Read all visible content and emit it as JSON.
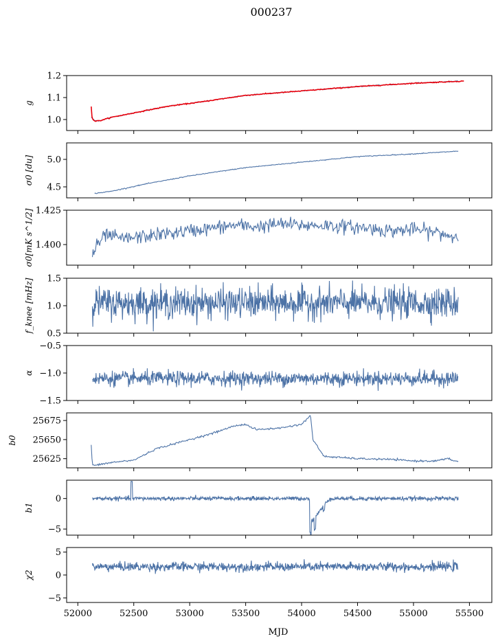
{
  "figure": {
    "title": "000237",
    "xlabel": "MJD"
  },
  "colors": {
    "series": "#4c72a6",
    "highlight": "#e8000b"
  },
  "chart_data": [
    {
      "type": "line",
      "ylabel": "g",
      "ylim": [
        0.95,
        1.2
      ],
      "yticks": [
        1.0,
        1.1,
        1.2
      ],
      "ytick_labels": [
        "1.0",
        "1.1",
        "1.2"
      ],
      "xlim": [
        51900,
        55700
      ],
      "series": [
        {
          "x": [
            52120,
            52150,
            52200,
            52300,
            52500,
            52800,
            53100,
            53500,
            54000,
            54500,
            55000,
            55400
          ],
          "y": [
            1.01,
            0.995,
            0.995,
            1.01,
            1.03,
            1.06,
            1.08,
            1.11,
            1.13,
            1.15,
            1.165,
            1.175
          ]
        },
        {
          "color_key": "highlight",
          "x": [
            52120,
            52125,
            52130,
            52140,
            52150,
            52200,
            52300,
            52500,
            52800,
            53100,
            53500,
            54000,
            54500,
            55000,
            55450
          ],
          "y": [
            1.06,
            1.02,
            1.005,
            0.998,
            0.993,
            0.995,
            1.01,
            1.03,
            1.06,
            1.08,
            1.11,
            1.13,
            1.15,
            1.165,
            1.175
          ]
        }
      ]
    },
    {
      "type": "line",
      "ylabel": "σ0 [du]",
      "ylim": [
        4.3,
        5.3
      ],
      "yticks": [
        4.5,
        5.0
      ],
      "ytick_labels": [
        "4.5",
        "5.0"
      ],
      "xlim": [
        51900,
        55700
      ],
      "series": [
        {
          "x": [
            52150,
            52300,
            52600,
            53000,
            53500,
            54000,
            54500,
            55000,
            55400
          ],
          "y": [
            4.38,
            4.42,
            4.55,
            4.7,
            4.85,
            4.95,
            5.05,
            5.1,
            5.15
          ]
        }
      ]
    },
    {
      "type": "line",
      "ylabel": "σ0[mK s^1/2]",
      "ylim": [
        1.385,
        1.425
      ],
      "yticks": [
        1.4,
        1.425
      ],
      "ytick_labels": [
        "1.400",
        "1.425"
      ],
      "xlim": [
        51900,
        55700
      ],
      "series": [
        {
          "x": [
            52130,
            52180,
            52250,
            52400,
            52600,
            52800,
            53000,
            53200,
            53400,
            53600,
            53800,
            54000,
            54200,
            54400,
            54600,
            54800,
            55000,
            55200,
            55400
          ],
          "y": [
            1.393,
            1.4,
            1.407,
            1.404,
            1.406,
            1.408,
            1.41,
            1.412,
            1.414,
            1.413,
            1.415,
            1.414,
            1.414,
            1.413,
            1.412,
            1.41,
            1.411,
            1.409,
            1.405
          ]
        }
      ]
    },
    {
      "type": "line",
      "ylabel": "f_knee [mHz]",
      "ylim": [
        0.5,
        1.5
      ],
      "yticks": [
        0.5,
        1.0,
        1.5
      ],
      "ytick_labels": [
        "0.5",
        "1.0",
        "1.5"
      ],
      "xlim": [
        51900,
        55700
      ],
      "series": [
        {
          "x_range": [
            52130,
            55400
          ],
          "mean": 1.05,
          "spread": 0.25
        }
      ]
    },
    {
      "type": "line",
      "ylabel": "α",
      "ylim": [
        -1.5,
        -0.5
      ],
      "yticks": [
        -1.5,
        -1.0,
        -0.5
      ],
      "ytick_labels": [
        "−1.5",
        "−1.0",
        "−0.5"
      ],
      "xlim": [
        51900,
        55700
      ],
      "series": [
        {
          "x_range": [
            52130,
            55400
          ],
          "mean": -1.1,
          "spread": 0.12
        }
      ]
    },
    {
      "type": "line",
      "ylabel": "b0",
      "ylim": [
        25613,
        25685
      ],
      "yticks": [
        25625,
        25650,
        25675
      ],
      "ytick_labels": [
        "25625",
        "25650",
        "25675"
      ],
      "xlim": [
        51900,
        55700
      ],
      "series": [
        {
          "x": [
            52120,
            52130,
            52150,
            52300,
            52500,
            52700,
            53000,
            53200,
            53400,
            53500,
            53550,
            53600,
            53800,
            54000,
            54080,
            54100,
            54200,
            54500,
            54800,
            55000,
            55200,
            55300,
            55400
          ],
          "y": [
            25643,
            25617,
            25616,
            25620,
            25623,
            25638,
            25650,
            25658,
            25668,
            25670,
            25666,
            25663,
            25665,
            25670,
            25682,
            25650,
            25628,
            25625,
            25624,
            25622,
            25622,
            25625,
            25621
          ]
        }
      ]
    },
    {
      "type": "line",
      "ylabel": "b1",
      "ylim": [
        -6,
        3
      ],
      "yticks": [
        -5,
        0
      ],
      "ytick_labels": [
        "−5",
        "0"
      ],
      "xlim": [
        51900,
        55700
      ],
      "series": [
        {
          "x_range": [
            52130,
            55400
          ],
          "mean": 0.0,
          "spread": 0.3,
          "features": [
            {
              "x": 52480,
              "y": 2.8
            },
            {
              "x": 54080,
              "y": -5.5
            },
            {
              "x": 54120,
              "y": -2.0
            },
            {
              "x": 54200,
              "y": -0.8
            }
          ]
        }
      ]
    },
    {
      "type": "line",
      "ylabel": "χ2",
      "ylim": [
        -6,
        6
      ],
      "yticks": [
        -5,
        0,
        5
      ],
      "ytick_labels": [
        "−5",
        "0",
        "5"
      ],
      "xticks": [
        52000,
        52500,
        53000,
        53500,
        54000,
        54500,
        55000,
        55500
      ],
      "xtick_labels": [
        "52000",
        "52500",
        "53000",
        "53500",
        "54000",
        "54500",
        "55000",
        "55500"
      ],
      "xlim": [
        51900,
        55700
      ],
      "series": [
        {
          "x_range": [
            52130,
            55400
          ],
          "mean": 1.8,
          "spread": 0.9
        }
      ]
    }
  ]
}
